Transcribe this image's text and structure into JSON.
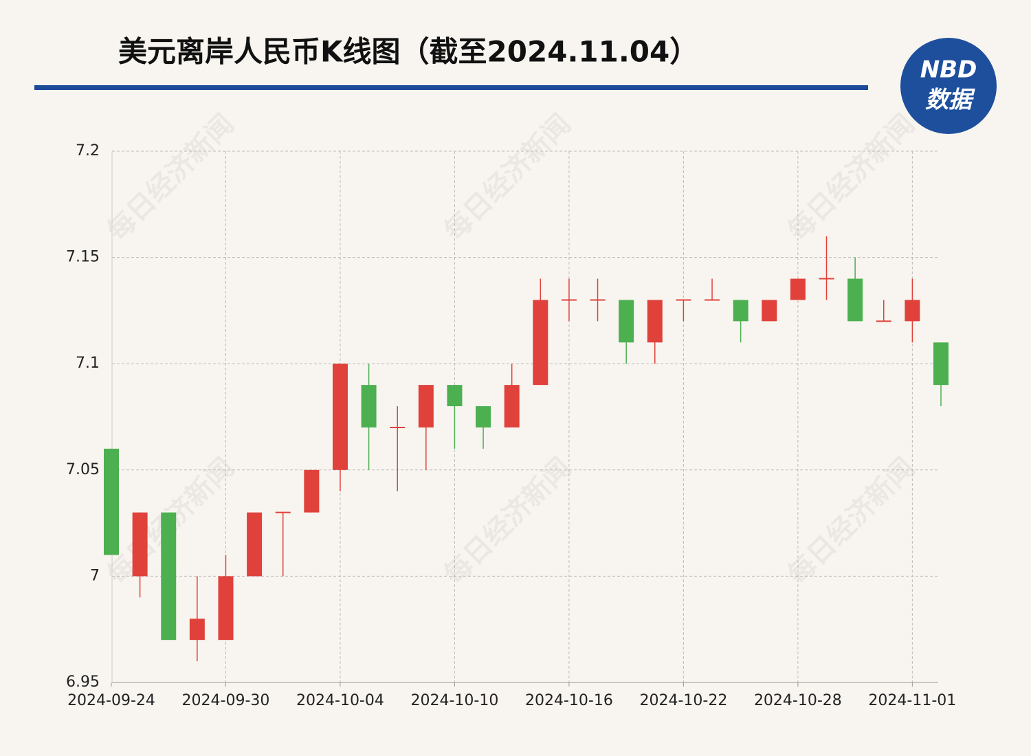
{
  "header": {
    "title": "美元离岸人民币K线图（截至2024.11.04）",
    "logo_top": "NBD",
    "logo_bottom": "数据",
    "watermark": "每日经济新闻"
  },
  "chart_data": {
    "type": "candlestick",
    "categories": [
      "2024-09-24",
      null,
      null,
      null,
      "2024-09-30",
      null,
      null,
      null,
      "2024-10-04",
      null,
      null,
      null,
      "2024-10-10",
      null,
      null,
      null,
      "2024-10-16",
      null,
      null,
      null,
      "2024-10-22",
      null,
      null,
      null,
      "2024-10-28",
      null,
      null,
      null,
      "2024-11-01",
      null
    ],
    "open": [
      7.06,
      7.0,
      7.03,
      6.97,
      6.97,
      7.0,
      7.03,
      7.03,
      7.05,
      7.09,
      7.07,
      7.07,
      7.09,
      7.08,
      7.07,
      7.09,
      7.13,
      7.13,
      7.13,
      7.11,
      7.13,
      7.13,
      7.13,
      7.12,
      7.13,
      7.14,
      7.14,
      7.12,
      7.12,
      7.11
    ],
    "high": [
      7.06,
      7.03,
      7.03,
      7.0,
      7.01,
      7.03,
      7.03,
      7.05,
      7.1,
      7.1,
      7.08,
      7.09,
      7.09,
      7.08,
      7.1,
      7.14,
      7.14,
      7.14,
      7.13,
      7.13,
      7.13,
      7.14,
      7.13,
      7.13,
      7.14,
      7.16,
      7.15,
      7.13,
      7.14,
      7.11
    ],
    "low": [
      7.01,
      6.99,
      6.97,
      6.96,
      6.97,
      7.0,
      7.0,
      7.03,
      7.04,
      7.05,
      7.04,
      7.05,
      7.06,
      7.06,
      7.07,
      7.09,
      7.12,
      7.12,
      7.1,
      7.1,
      7.12,
      7.13,
      7.11,
      7.12,
      7.13,
      7.13,
      7.12,
      7.12,
      7.11,
      7.08
    ],
    "close": [
      7.01,
      7.03,
      6.97,
      6.98,
      7.0,
      7.03,
      7.03,
      7.05,
      7.1,
      7.07,
      7.07,
      7.09,
      7.08,
      7.07,
      7.09,
      7.13,
      7.13,
      7.13,
      7.11,
      7.13,
      7.13,
      7.13,
      7.12,
      7.13,
      7.14,
      7.14,
      7.12,
      7.12,
      7.13,
      7.09
    ],
    "up_color": "#e0413a",
    "down_color": "#4caf50",
    "ylim": [
      6.95,
      7.2
    ],
    "yticks": [
      6.95,
      7,
      7.05,
      7.1,
      7.15,
      7.2
    ],
    "grid": true
  }
}
